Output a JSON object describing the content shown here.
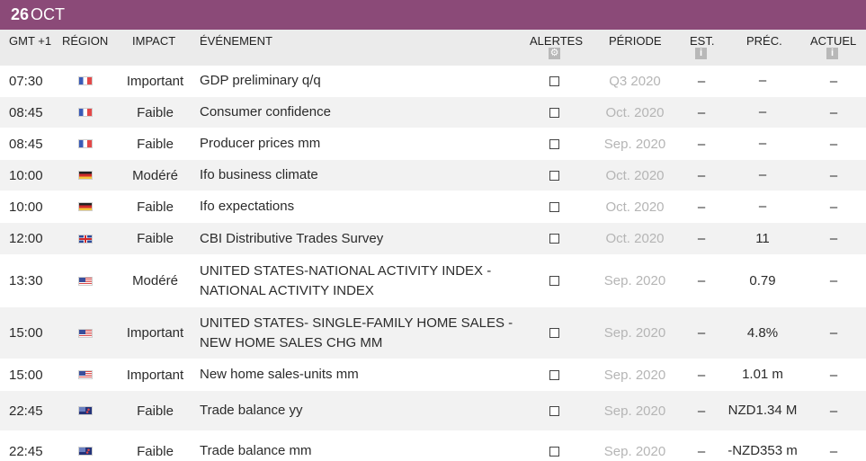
{
  "date": {
    "day": "26",
    "month": "OCT"
  },
  "columns": {
    "time": "GMT +1",
    "region": "RÉGION",
    "impact": "IMPACT",
    "event": "ÉVÉNEMENT",
    "alerts": "ALERTES",
    "period": "PÉRIODE",
    "est": "EST.",
    "prev": "PRÉC.",
    "actual": "ACTUEL",
    "alerts_icon": "gear-icon",
    "info_icon": "i"
  },
  "rows": [
    {
      "time": "07:30",
      "region": "fr",
      "impact": "Important",
      "event": "GDP preliminary q/q",
      "period": "Q3 2020",
      "est": "–",
      "prev": "–",
      "actual": "–"
    },
    {
      "time": "08:45",
      "region": "fr",
      "impact": "Faible",
      "event": "Consumer confidence",
      "period": "Oct. 2020",
      "est": "–",
      "prev": "–",
      "actual": "–"
    },
    {
      "time": "08:45",
      "region": "fr",
      "impact": "Faible",
      "event": "Producer prices mm",
      "period": "Sep. 2020",
      "est": "–",
      "prev": "–",
      "actual": "–"
    },
    {
      "time": "10:00",
      "region": "de",
      "impact": "Modéré",
      "event": "Ifo business climate",
      "period": "Oct. 2020",
      "est": "–",
      "prev": "–",
      "actual": "–"
    },
    {
      "time": "10:00",
      "region": "de",
      "impact": "Faible",
      "event": "Ifo expectations",
      "period": "Oct. 2020",
      "est": "–",
      "prev": "–",
      "actual": "–"
    },
    {
      "time": "12:00",
      "region": "gb",
      "impact": "Faible",
      "event": "CBI Distributive Trades Survey",
      "period": "Oct. 2020",
      "est": "–",
      "prev": "11",
      "actual": "–"
    },
    {
      "time": "13:30",
      "region": "us",
      "impact": "Modéré",
      "event": "UNITED STATES-NATIONAL ACTIVITY INDEX - NATIONAL ACTIVITY INDEX",
      "period": "Sep. 2020",
      "est": "–",
      "prev": "0.79",
      "actual": "–"
    },
    {
      "time": "15:00",
      "region": "us",
      "impact": "Important",
      "event": "UNITED STATES- SINGLE-FAMILY HOME SALES - NEW HOME SALES CHG MM",
      "period": "Sep. 2020",
      "est": "–",
      "prev": "4.8%",
      "actual": "–"
    },
    {
      "time": "15:00",
      "region": "us",
      "impact": "Important",
      "event": "New home sales-units mm",
      "period": "Sep. 2020",
      "est": "–",
      "prev": "1.01 m",
      "actual": "–"
    },
    {
      "time": "22:45",
      "region": "nz",
      "impact": "Faible",
      "event": "Trade balance yy",
      "period": "Sep. 2020",
      "est": "–",
      "prev": "NZD1.34 M",
      "actual": "–"
    },
    {
      "time": "22:45",
      "region": "nz",
      "impact": "Faible",
      "event": "Trade balance mm",
      "period": "Sep. 2020",
      "est": "–",
      "prev": "-NZD353 m",
      "actual": "–"
    }
  ]
}
